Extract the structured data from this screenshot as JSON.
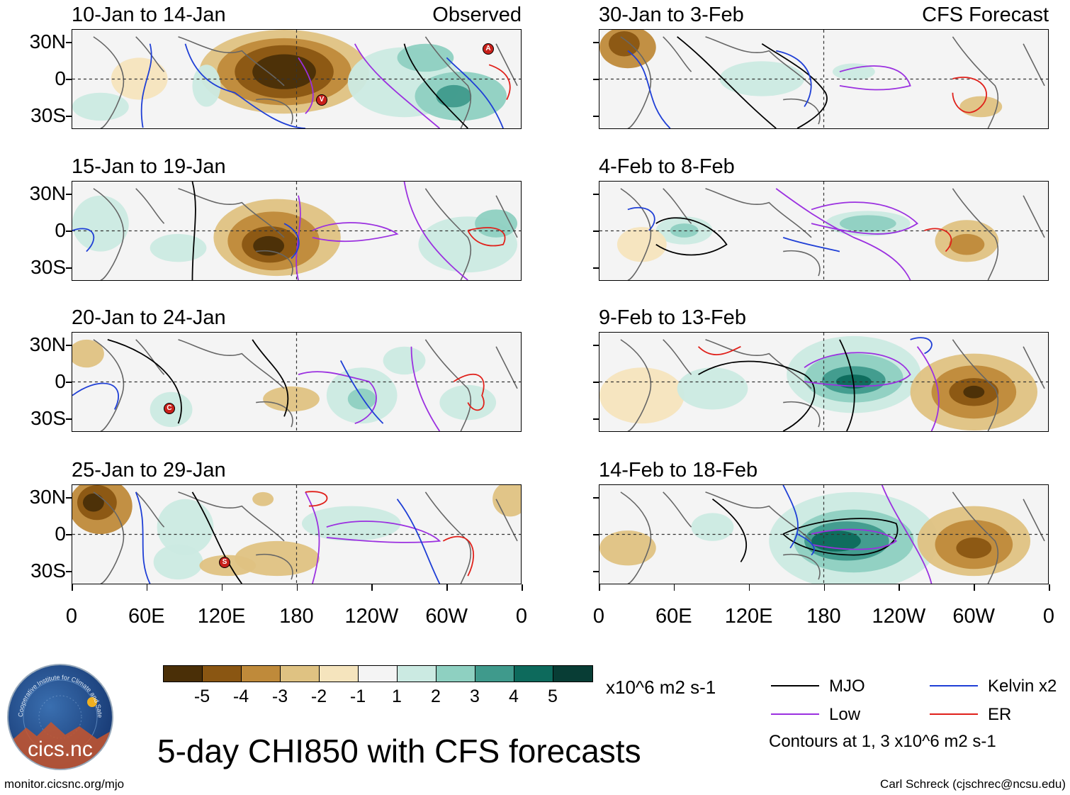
{
  "figure": {
    "title": "5-day CHI850 with CFS forecasts",
    "observed_label": "Observed",
    "forecast_label": "CFS Forecast",
    "website": "monitor.cicsnc.org/mjo",
    "author": "Carl Schreck (cjschrec@ncsu.edu)",
    "logo_text": "cics.nc",
    "logo_ring_text": "Cooperative Institute for Climate and Satellites"
  },
  "axes": {
    "y_labels": [
      "30N",
      "0",
      "30S"
    ],
    "x_labels": [
      "0",
      "60E",
      "120E",
      "180",
      "120W",
      "60W",
      "0"
    ]
  },
  "panels": [
    {
      "period": "10-Jan to 14-Jan",
      "source": "observed",
      "storm_markers": [
        "A",
        "V"
      ]
    },
    {
      "period": "15-Jan to 19-Jan",
      "source": "observed",
      "storm_markers": []
    },
    {
      "period": "20-Jan to 24-Jan",
      "source": "observed",
      "storm_markers": [
        "C"
      ]
    },
    {
      "period": "25-Jan to 29-Jan",
      "source": "observed",
      "storm_markers": [
        "S"
      ]
    },
    {
      "period": "30-Jan to 3-Feb",
      "source": "forecast",
      "storm_markers": []
    },
    {
      "period": "4-Feb to 8-Feb",
      "source": "forecast",
      "storm_markers": []
    },
    {
      "period": "9-Feb to 13-Feb",
      "source": "forecast",
      "storm_markers": []
    },
    {
      "period": "14-Feb to 18-Feb",
      "source": "forecast",
      "storm_markers": []
    }
  ],
  "colorbar": {
    "labels": [
      "-5",
      "-4",
      "-3",
      "-2",
      "-1",
      "1",
      "2",
      "3",
      "4",
      "5"
    ],
    "colors": [
      "#4a2f07",
      "#8a5612",
      "#bf8a3a",
      "#dfc282",
      "#f5e4bd",
      "#f4f4f4",
      "#cbeae2",
      "#8ed0c1",
      "#3f9a8c",
      "#0d6a5c",
      "#083d35"
    ],
    "units": "x10^6 m2 s-1"
  },
  "legend": {
    "items": [
      {
        "label": "MJO",
        "color": "#000000"
      },
      {
        "label": "Kelvin x2",
        "color": "#1f3fd6"
      },
      {
        "label": "Low",
        "color": "#9b30e0"
      },
      {
        "label": "ER",
        "color": "#e0201a"
      }
    ],
    "note": "Contours at 1, 3 x10^6 m2 s-1"
  }
}
